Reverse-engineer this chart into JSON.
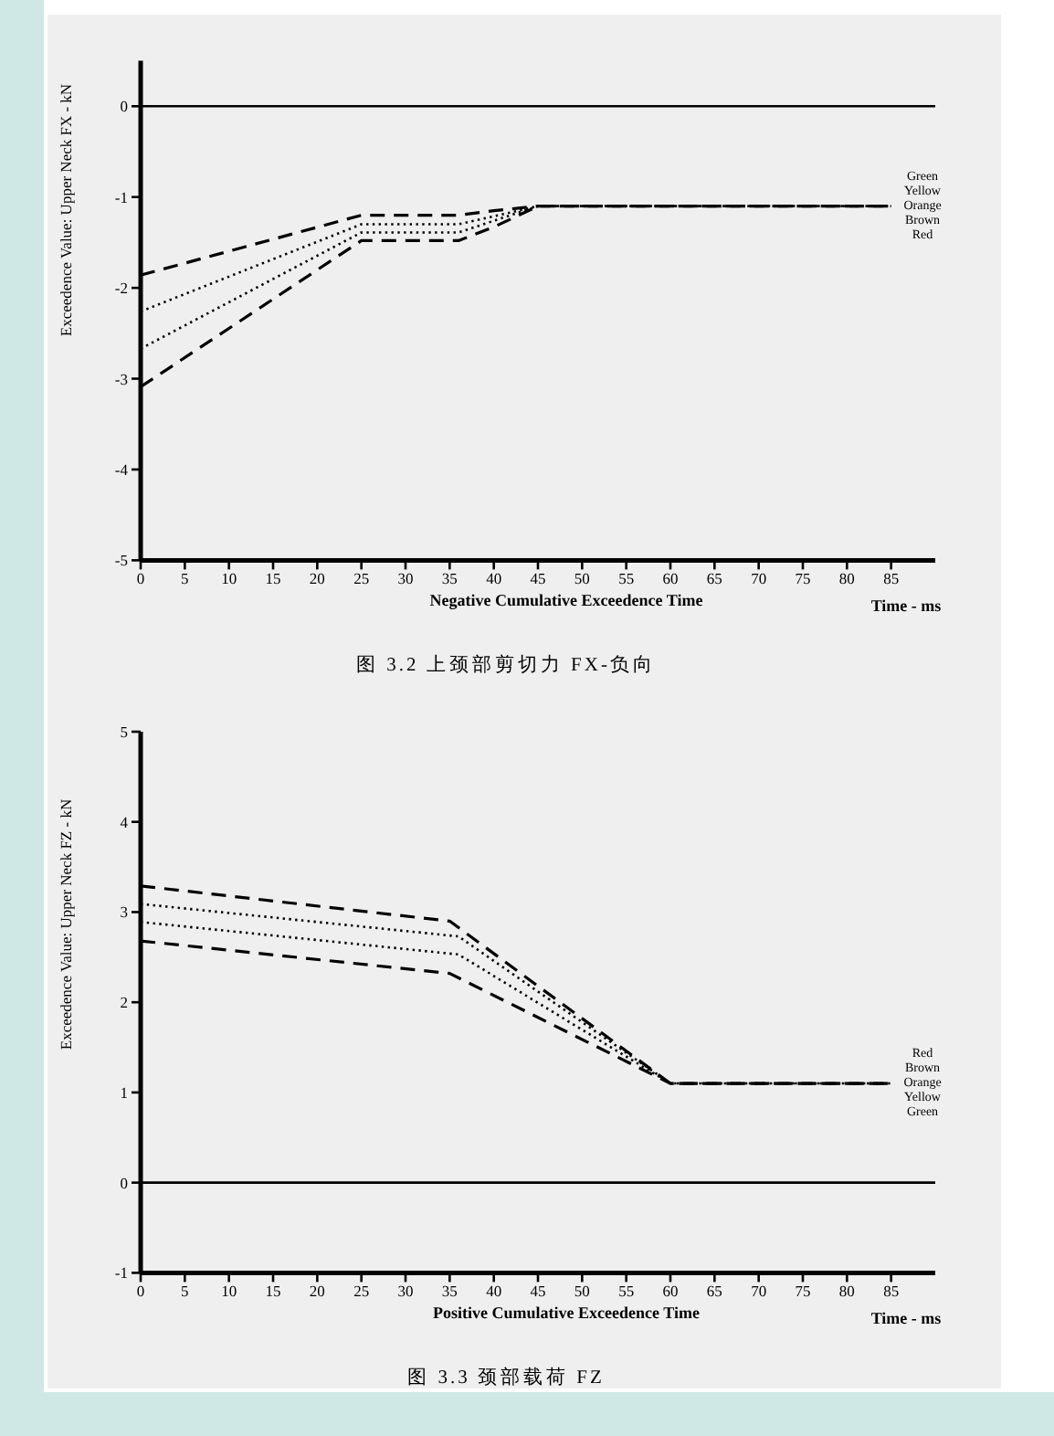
{
  "chart_data": [
    {
      "type": "line",
      "title": "图 3.2 上颈部剪切力 FX-负向",
      "xlabel": "Negative Cumulative Exceedence Time",
      "ylabel": "Exceedence Value: Upper Neck FX - kN",
      "xlim": [
        0,
        90
      ],
      "xticks": [
        0,
        5,
        10,
        15,
        20,
        25,
        30,
        35,
        40,
        45,
        50,
        55,
        60,
        65,
        70,
        75,
        80,
        85
      ],
      "ylim": [
        -5,
        0.5
      ],
      "yticks": [
        -5,
        -4,
        -3,
        -2,
        -1,
        0
      ],
      "ref_lines": [
        {
          "axis": "y",
          "value": 0,
          "color": "#000000",
          "line_style": "solid"
        }
      ],
      "annotations": [
        "Time - ms",
        "Green",
        "Yellow",
        "Orange",
        "Brown",
        "Red"
      ],
      "series": [
        {
          "color": "#000000",
          "line_style": "dashed",
          "x": [
            0,
            25,
            36,
            40,
            45,
            85
          ],
          "values": [
            -1.86,
            -1.2,
            -1.2,
            -1.15,
            -1.1,
            -1.1
          ]
        },
        {
          "color": "#000000",
          "line_style": "dotted",
          "x": [
            0,
            25,
            36,
            45,
            85
          ],
          "values": [
            -2.26,
            -1.3,
            -1.3,
            -1.1,
            -1.1
          ]
        },
        {
          "color": "#000000",
          "line_style": "dotted",
          "x": [
            0,
            25,
            36,
            45,
            85
          ],
          "values": [
            -2.67,
            -1.39,
            -1.39,
            -1.1,
            -1.1
          ]
        },
        {
          "color": "#000000",
          "line_style": "dashed",
          "x": [
            0,
            25,
            36,
            40,
            45,
            85
          ],
          "values": [
            -3.09,
            -1.48,
            -1.48,
            -1.33,
            -1.1,
            -1.1
          ]
        }
      ]
    },
    {
      "type": "line",
      "title": "图 3.3 颈部载荷 FZ",
      "xlabel": "Positive Cumulative Exceedence Time",
      "ylabel": "Exceedence Value: Upper Neck FZ - kN",
      "xlim": [
        0,
        90
      ],
      "xticks": [
        0,
        5,
        10,
        15,
        20,
        25,
        30,
        35,
        40,
        45,
        50,
        55,
        60,
        65,
        70,
        75,
        80,
        85
      ],
      "ylim": [
        -1,
        5
      ],
      "yticks": [
        -1,
        0,
        1,
        2,
        3,
        4,
        5
      ],
      "ref_lines": [
        {
          "axis": "y",
          "value": 0,
          "color": "#000000",
          "line_style": "solid"
        }
      ],
      "annotations": [
        "Time - ms",
        "Red",
        "Brown",
        "Orange",
        "Yellow",
        "Green"
      ],
      "series": [
        {
          "color": "#000000",
          "line_style": "dashed",
          "x": [
            0,
            35,
            60,
            85
          ],
          "values": [
            3.29,
            2.9,
            1.1,
            1.1
          ]
        },
        {
          "color": "#000000",
          "line_style": "dotted",
          "x": [
            0,
            36,
            60,
            85
          ],
          "values": [
            3.09,
            2.73,
            1.1,
            1.1
          ]
        },
        {
          "color": "#000000",
          "line_style": "dotted",
          "x": [
            0,
            36,
            60,
            85
          ],
          "values": [
            2.89,
            2.53,
            1.1,
            1.1
          ]
        },
        {
          "color": "#000000",
          "line_style": "dashed",
          "x": [
            0,
            35,
            60,
            85
          ],
          "values": [
            2.68,
            2.32,
            1.1,
            1.1
          ]
        }
      ]
    }
  ]
}
